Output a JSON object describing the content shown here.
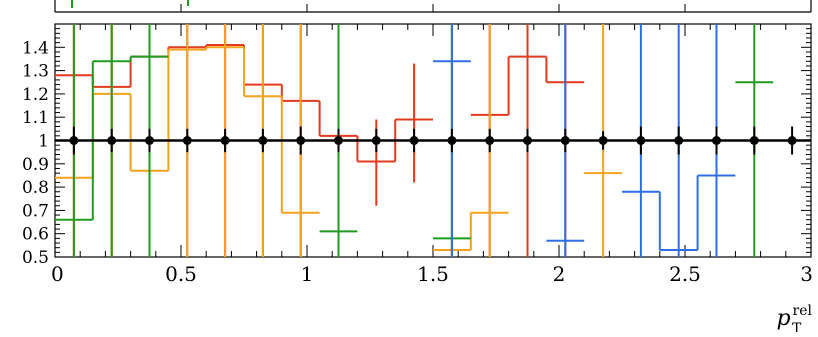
{
  "chart_data": {
    "type": "line",
    "title": "",
    "xlabel": "p",
    "xlabel_sub": "T",
    "xlabel_sup": "rel",
    "ylabel": "",
    "xlim": [
      0,
      3
    ],
    "ylim": [
      0.5,
      1.5
    ],
    "x_ticks": [
      0,
      0.5,
      1,
      1.5,
      2,
      2.5,
      3
    ],
    "x_tick_labels": [
      "0",
      "0.5",
      "1",
      "1.5",
      "2",
      "2.5",
      "3"
    ],
    "y_ticks": [
      0.5,
      0.6,
      0.7,
      0.8,
      0.9,
      1,
      1.1,
      1.2,
      1.3,
      1.4
    ],
    "y_tick_labels": [
      "0.5",
      "0.6",
      "0.7",
      "0.8",
      "0.9",
      "1",
      "1.1",
      "1.2",
      "1.3",
      "1.4"
    ],
    "bin_edges": [
      0,
      0.15,
      0.3,
      0.45,
      0.6,
      0.75,
      0.9,
      1.05,
      1.2,
      1.35,
      1.5,
      1.65,
      1.8,
      1.95,
      2.1,
      2.25,
      2.4,
      2.55,
      2.7,
      2.85,
      3.0
    ],
    "reference": {
      "color": "#000000",
      "values": [
        1,
        1,
        1,
        1,
        1,
        1,
        1,
        1,
        1,
        1,
        1,
        1,
        1,
        1,
        1,
        1,
        1,
        1,
        1,
        1
      ],
      "err_lo": [
        0.94,
        0.95,
        0.95,
        0.95,
        0.95,
        0.95,
        0.94,
        0.95,
        0.95,
        0.95,
        0.95,
        0.95,
        0.95,
        0.95,
        0.96,
        0.94,
        0.94,
        0.94,
        0.94,
        0.94
      ],
      "err_hi": [
        1.06,
        1.05,
        1.05,
        1.05,
        1.05,
        1.05,
        1.06,
        1.05,
        1.05,
        1.05,
        1.05,
        1.05,
        1.05,
        1.05,
        1.04,
        1.06,
        1.06,
        1.06,
        1.06,
        1.06
      ]
    },
    "series": [
      {
        "color": "#e3391c",
        "values": [
          1.28,
          1.23,
          1.36,
          1.4,
          1.41,
          1.24,
          1.17,
          1.02,
          0.91,
          1.09,
          null,
          1.11,
          1.36,
          1.25,
          null,
          null,
          null,
          null,
          null,
          null
        ],
        "err_lo": [
          0.5,
          0.5,
          0.5,
          0.5,
          0.5,
          0.5,
          0.5,
          0.5,
          0.72,
          0.82,
          null,
          0.5,
          0.5,
          0.5,
          null,
          null,
          null,
          null,
          null,
          null
        ],
        "err_hi": [
          1.5,
          1.5,
          1.5,
          1.5,
          1.5,
          1.5,
          1.5,
          1.5,
          1.09,
          1.33,
          null,
          1.5,
          1.5,
          1.5,
          null,
          null,
          null,
          null,
          null,
          null
        ]
      },
      {
        "color": "#f5a21c",
        "values": [
          0.84,
          1.2,
          0.87,
          1.39,
          1.4,
          1.19,
          0.69,
          null,
          null,
          null,
          0.53,
          0.69,
          null,
          null,
          0.86,
          null,
          null,
          null,
          null,
          null
        ],
        "err_lo": [
          0.5,
          0.5,
          0.5,
          0.5,
          0.5,
          0.5,
          0.5,
          null,
          null,
          null,
          0.5,
          0.5,
          null,
          null,
          0.5,
          null,
          null,
          null,
          null,
          null
        ],
        "err_hi": [
          1.5,
          1.5,
          1.5,
          1.5,
          1.5,
          1.5,
          1.5,
          null,
          null,
          null,
          1.5,
          1.5,
          null,
          null,
          1.5,
          null,
          null,
          null,
          null,
          null
        ]
      },
      {
        "color": "#1f9c1f",
        "values": [
          0.66,
          1.34,
          1.36,
          null,
          null,
          null,
          null,
          0.61,
          null,
          null,
          0.58,
          null,
          null,
          null,
          null,
          null,
          null,
          null,
          1.25,
          null
        ],
        "err_lo": [
          0.5,
          0.5,
          0.5,
          null,
          null,
          null,
          null,
          0.5,
          null,
          null,
          0.5,
          null,
          null,
          null,
          null,
          null,
          null,
          null,
          0.5,
          null
        ],
        "err_hi": [
          1.5,
          1.5,
          1.5,
          null,
          null,
          null,
          null,
          1.5,
          null,
          null,
          1.5,
          null,
          null,
          null,
          null,
          null,
          null,
          null,
          1.5,
          null
        ]
      },
      {
        "color": "#2f6ee8",
        "values": [
          null,
          null,
          null,
          null,
          null,
          null,
          null,
          null,
          null,
          null,
          1.34,
          null,
          null,
          0.57,
          null,
          0.78,
          0.53,
          0.85,
          null,
          null
        ],
        "err_lo": [
          null,
          null,
          null,
          null,
          null,
          null,
          null,
          null,
          null,
          null,
          0.5,
          null,
          null,
          0.5,
          null,
          0.5,
          0.5,
          0.5,
          null,
          null
        ],
        "err_hi": [
          null,
          null,
          null,
          null,
          null,
          null,
          null,
          null,
          null,
          null,
          1.5,
          null,
          null,
          1.5,
          null,
          1.5,
          1.5,
          1.5,
          null,
          null
        ]
      }
    ]
  }
}
